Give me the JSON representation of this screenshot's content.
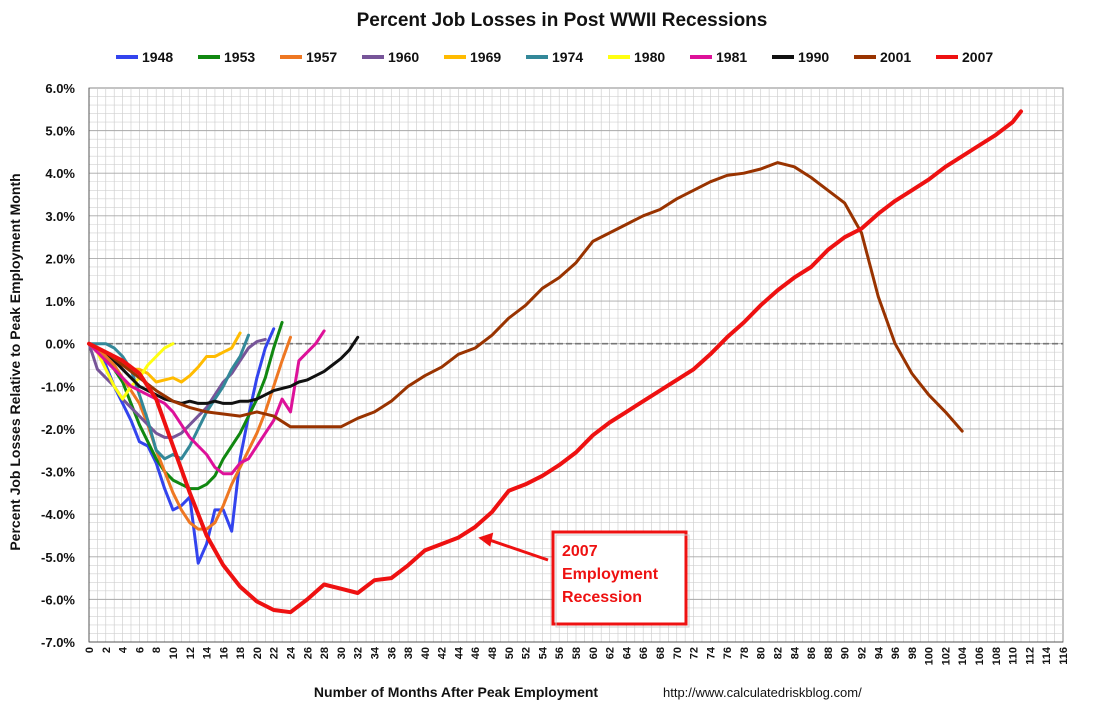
{
  "chart_data": {
    "type": "line",
    "title": "Percent Job Losses in Post WWII Recessions",
    "xlabel": "Number of Months After Peak Employment",
    "ylabel": "Percent Job Losses Relative to Peak Employment Month",
    "source": "http://www.calculatedriskblog.com/",
    "xlim": [
      0,
      116
    ],
    "ylim": [
      -7,
      6
    ],
    "grid": true,
    "legend_position": "top",
    "y_ticks": [
      "6.0%",
      "5.0%",
      "4.0%",
      "3.0%",
      "2.0%",
      "1.0%",
      "0.0%",
      "-1.0%",
      "-2.0%",
      "-3.0%",
      "-4.0%",
      "-5.0%",
      "-6.0%",
      "-7.0%"
    ],
    "y_tick_values": [
      6,
      5,
      4,
      3,
      2,
      1,
      0,
      -1,
      -2,
      -3,
      -4,
      -5,
      -6,
      -7
    ],
    "x_ticks": [
      "0",
      "2",
      "4",
      "6",
      "8",
      "10",
      "12",
      "14",
      "16",
      "18",
      "20",
      "22",
      "24",
      "26",
      "28",
      "30",
      "32",
      "34",
      "36",
      "38",
      "40",
      "42",
      "44",
      "46",
      "48",
      "50",
      "52",
      "54",
      "56",
      "58",
      "60",
      "62",
      "64",
      "66",
      "68",
      "70",
      "72",
      "74",
      "76",
      "78",
      "80",
      "82",
      "84",
      "86",
      "88",
      "90",
      "92",
      "94",
      "96",
      "98",
      "100",
      "102",
      "104",
      "106",
      "108",
      "110",
      "112",
      "114",
      "116"
    ],
    "annotation": {
      "lines": [
        "2007",
        "Employment",
        "Recession"
      ],
      "points_to": [
        46,
        -4.55
      ],
      "color": "#ee1111"
    },
    "series": [
      {
        "name": "1948",
        "color": "#3344ee",
        "x": [
          0,
          1,
          2,
          3,
          4,
          5,
          6,
          7,
          8,
          9,
          10,
          11,
          12,
          13,
          14,
          15,
          16,
          17,
          18,
          19,
          20,
          21,
          22
        ],
        "y": [
          0,
          -0.2,
          -0.5,
          -1.0,
          -1.4,
          -1.8,
          -2.3,
          -2.4,
          -2.8,
          -3.4,
          -3.9,
          -3.8,
          -3.6,
          -5.15,
          -4.7,
          -3.9,
          -3.9,
          -4.4,
          -2.7,
          -1.7,
          -0.8,
          -0.1,
          0.35
        ]
      },
      {
        "name": "1953",
        "color": "#118811",
        "x": [
          0,
          1,
          2,
          3,
          4,
          5,
          6,
          7,
          8,
          9,
          10,
          11,
          12,
          13,
          14,
          15,
          16,
          17,
          18,
          19,
          20,
          21,
          22,
          23
        ],
        "y": [
          0,
          -0.1,
          -0.3,
          -0.6,
          -0.9,
          -1.4,
          -1.9,
          -2.3,
          -2.7,
          -3.0,
          -3.2,
          -3.3,
          -3.4,
          -3.4,
          -3.3,
          -3.1,
          -2.7,
          -2.4,
          -2.1,
          -1.7,
          -1.3,
          -0.8,
          -0.1,
          0.5
        ]
      },
      {
        "name": "1957",
        "color": "#ee7722",
        "x": [
          0,
          1,
          2,
          3,
          4,
          5,
          6,
          7,
          8,
          9,
          10,
          11,
          12,
          13,
          14,
          15,
          16,
          17,
          18,
          19,
          20,
          21,
          22,
          23,
          24
        ],
        "y": [
          0,
          -0.1,
          -0.3,
          -0.5,
          -0.8,
          -1.1,
          -1.4,
          -1.9,
          -2.5,
          -3.0,
          -3.5,
          -3.9,
          -4.2,
          -4.35,
          -4.35,
          -4.2,
          -3.8,
          -3.3,
          -2.9,
          -2.5,
          -2.1,
          -1.6,
          -1.0,
          -0.4,
          0.15
        ]
      },
      {
        "name": "1960",
        "color": "#775599",
        "x": [
          0,
          1,
          2,
          3,
          4,
          5,
          6,
          7,
          8,
          9,
          10,
          11,
          12,
          13,
          14,
          15,
          16,
          17,
          18,
          19,
          20,
          21
        ],
        "y": [
          0,
          -0.6,
          -0.8,
          -1.0,
          -1.3,
          -1.5,
          -1.7,
          -1.9,
          -2.1,
          -2.2,
          -2.2,
          -2.1,
          -1.9,
          -1.7,
          -1.5,
          -1.2,
          -0.9,
          -0.7,
          -0.4,
          -0.1,
          0.05,
          0.1
        ]
      },
      {
        "name": "1969",
        "color": "#ffbb00",
        "x": [
          0,
          1,
          2,
          3,
          4,
          5,
          6,
          7,
          8,
          9,
          10,
          11,
          12,
          13,
          14,
          15,
          16,
          17,
          18
        ],
        "y": [
          0,
          -0.1,
          -0.2,
          -0.4,
          -0.5,
          -0.6,
          -0.6,
          -0.7,
          -0.9,
          -0.85,
          -0.8,
          -0.9,
          -0.75,
          -0.55,
          -0.3,
          -0.3,
          -0.2,
          -0.1,
          0.25
        ]
      },
      {
        "name": "1974",
        "color": "#338899",
        "x": [
          0,
          1,
          2,
          3,
          4,
          5,
          6,
          7,
          8,
          9,
          10,
          11,
          12,
          13,
          14,
          15,
          16,
          17,
          18,
          19
        ],
        "y": [
          0,
          0,
          0,
          -0.1,
          -0.3,
          -0.6,
          -1.2,
          -1.8,
          -2.5,
          -2.7,
          -2.6,
          -2.7,
          -2.4,
          -2.0,
          -1.6,
          -1.3,
          -1.0,
          -0.6,
          -0.3,
          0.2
        ]
      },
      {
        "name": "1980",
        "color": "#ffff11",
        "x": [
          0,
          1,
          2,
          3,
          4,
          5,
          6,
          7,
          8,
          9,
          10
        ],
        "y": [
          0,
          -0.2,
          -0.6,
          -1.0,
          -1.3,
          -1.0,
          -0.8,
          -0.5,
          -0.3,
          -0.1,
          0.0
        ]
      },
      {
        "name": "1981",
        "color": "#dd1199",
        "x": [
          0,
          1,
          2,
          3,
          4,
          5,
          6,
          7,
          8,
          9,
          10,
          11,
          12,
          13,
          14,
          15,
          16,
          17,
          18,
          19,
          20,
          21,
          22,
          23,
          24,
          25,
          26,
          27,
          28
        ],
        "y": [
          0,
          -0.2,
          -0.4,
          -0.6,
          -0.8,
          -1.0,
          -1.1,
          -1.2,
          -1.3,
          -1.4,
          -1.6,
          -1.9,
          -2.2,
          -2.4,
          -2.6,
          -2.9,
          -3.05,
          -3.05,
          -2.8,
          -2.7,
          -2.4,
          -2.1,
          -1.8,
          -1.3,
          -1.6,
          -0.4,
          -0.2,
          0.0,
          0.3
        ]
      },
      {
        "name": "1990",
        "color": "#111111",
        "x": [
          0,
          1,
          2,
          3,
          4,
          5,
          6,
          7,
          8,
          9,
          10,
          11,
          12,
          13,
          14,
          15,
          16,
          17,
          18,
          19,
          20,
          21,
          22,
          23,
          24,
          25,
          26,
          27,
          28,
          29,
          30,
          31,
          32
        ],
        "y": [
          0,
          -0.1,
          -0.2,
          -0.4,
          -0.6,
          -0.8,
          -1.0,
          -1.1,
          -1.2,
          -1.3,
          -1.35,
          -1.4,
          -1.35,
          -1.4,
          -1.4,
          -1.35,
          -1.4,
          -1.4,
          -1.35,
          -1.35,
          -1.3,
          -1.2,
          -1.1,
          -1.05,
          -1.0,
          -0.9,
          -0.85,
          -0.75,
          -0.65,
          -0.5,
          -0.35,
          -0.15,
          0.15
        ]
      },
      {
        "name": "2001",
        "color": "#993300",
        "x": [
          0,
          2,
          4,
          6,
          8,
          10,
          12,
          14,
          16,
          18,
          20,
          22,
          24,
          26,
          28,
          30,
          32,
          34,
          36,
          38,
          40,
          42,
          44,
          46,
          48,
          50,
          52,
          54,
          56,
          58,
          60,
          62,
          64,
          66,
          68,
          70,
          72,
          74,
          76,
          78,
          80,
          82,
          84,
          86,
          88,
          90,
          92,
          94,
          96,
          98,
          100,
          102,
          104
        ],
        "y": [
          0,
          -0.2,
          -0.5,
          -0.8,
          -1.1,
          -1.35,
          -1.5,
          -1.6,
          -1.65,
          -1.7,
          -1.6,
          -1.7,
          -1.95,
          -1.95,
          -1.95,
          -1.95,
          -1.75,
          -1.6,
          -1.35,
          -1.0,
          -0.75,
          -0.55,
          -0.25,
          -0.1,
          0.2,
          0.6,
          0.9,
          1.3,
          1.55,
          1.9,
          2.4,
          2.6,
          2.8,
          3.0,
          3.15,
          3.4,
          3.6,
          3.8,
          3.95,
          4.0,
          4.1,
          4.25,
          4.15,
          3.9,
          3.6,
          3.3,
          2.6,
          1.1,
          0.0,
          -0.7,
          -1.2,
          -1.6,
          -2.05
        ]
      },
      {
        "name": "2007",
        "color": "#ee1111",
        "x": [
          0,
          2,
          4,
          6,
          8,
          10,
          12,
          14,
          16,
          18,
          20,
          22,
          24,
          26,
          28,
          30,
          32,
          34,
          36,
          38,
          40,
          42,
          44,
          46,
          48,
          50,
          52,
          54,
          56,
          58,
          60,
          62,
          64,
          66,
          68,
          70,
          72,
          74,
          76,
          78,
          80,
          82,
          84,
          86,
          88,
          90,
          92,
          94,
          96,
          98,
          100,
          102,
          104,
          106,
          108,
          110,
          111
        ],
        "y": [
          0,
          -0.2,
          -0.4,
          -0.7,
          -1.3,
          -2.4,
          -3.5,
          -4.5,
          -5.2,
          -5.7,
          -6.05,
          -6.25,
          -6.3,
          -6.0,
          -5.65,
          -5.75,
          -5.85,
          -5.55,
          -5.5,
          -5.2,
          -4.85,
          -4.7,
          -4.55,
          -4.3,
          -3.95,
          -3.45,
          -3.3,
          -3.1,
          -2.85,
          -2.55,
          -2.15,
          -1.85,
          -1.6,
          -1.35,
          -1.1,
          -0.85,
          -0.6,
          -0.25,
          0.15,
          0.5,
          0.9,
          1.25,
          1.55,
          1.8,
          2.2,
          2.5,
          2.7,
          3.05,
          3.35,
          3.6,
          3.85,
          4.15,
          4.4,
          4.65,
          4.9,
          5.2,
          5.45
        ]
      }
    ]
  }
}
